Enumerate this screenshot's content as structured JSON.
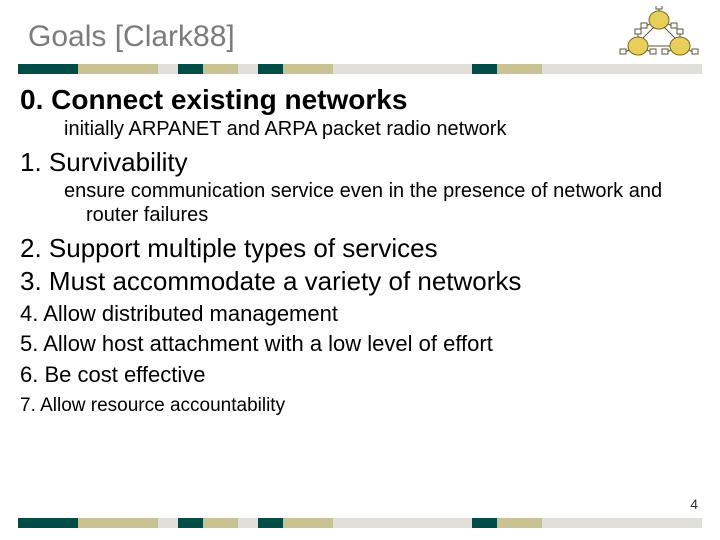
{
  "title": "Goals [Clark88]",
  "page_number": "4",
  "colors": {
    "title_color": "#7c7c7c",
    "text_color": "#000000",
    "background": "#ffffff"
  },
  "stripe_segments": [
    {
      "color": "#004d47",
      "flex": 1.2
    },
    {
      "color": "#c9c393",
      "flex": 1.6
    },
    {
      "color": "#e0e0d8",
      "flex": 0.4
    },
    {
      "color": "#004d47",
      "flex": 0.5
    },
    {
      "color": "#c9c393",
      "flex": 0.7
    },
    {
      "color": "#e0e0d8",
      "flex": 0.4
    },
    {
      "color": "#004d47",
      "flex": 0.5
    },
    {
      "color": "#c9c393",
      "flex": 1.0
    },
    {
      "color": "#e0e0d8",
      "flex": 2.8
    },
    {
      "color": "#004d47",
      "flex": 0.5
    },
    {
      "color": "#c9c393",
      "flex": 0.9
    },
    {
      "color": "#e0e0d8",
      "flex": 3.2
    }
  ],
  "goals": {
    "g0": {
      "heading": "0. Connect existing networks",
      "sub": "initially ARPANET and ARPA packet radio network"
    },
    "g1": {
      "heading": "1. Survivability",
      "sub": "ensure communication service even in the presence of network and router failures"
    },
    "g2": {
      "heading": "2. Support multiple types of services"
    },
    "g3": {
      "heading": "3. Must accommodate a variety of networks"
    },
    "g4": {
      "heading": "4. Allow distributed management"
    },
    "g5": {
      "heading": "5. Allow host attachment with a low level of effort"
    },
    "g6": {
      "heading": "6. Be cost effective"
    },
    "g7": {
      "heading": "7. Allow resource accountability"
    }
  },
  "diagram": {
    "ring_fill": "#e8cf5a",
    "ring_stroke": "#7a6a1f",
    "node_fill": "#ffffff",
    "node_stroke": "#5a5a3a",
    "link_stroke": "#5a5a3a"
  }
}
